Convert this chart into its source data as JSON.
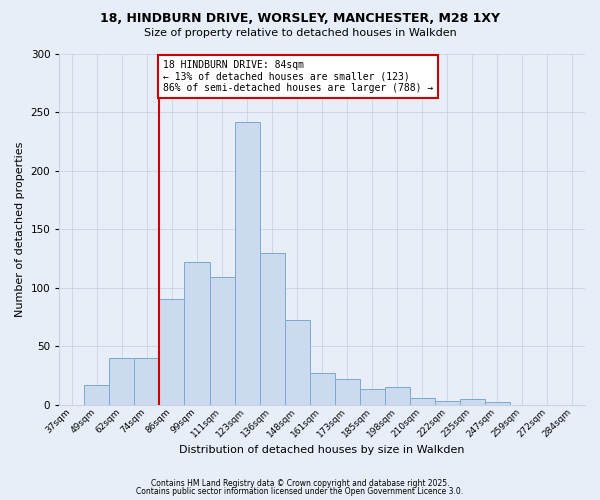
{
  "title1": "18, HINDBURN DRIVE, WORSLEY, MANCHESTER, M28 1XY",
  "title2": "Size of property relative to detached houses in Walkden",
  "xlabel": "Distribution of detached houses by size in Walkden",
  "ylabel": "Number of detached properties",
  "categories": [
    "37sqm",
    "49sqm",
    "62sqm",
    "74sqm",
    "86sqm",
    "99sqm",
    "111sqm",
    "123sqm",
    "136sqm",
    "148sqm",
    "161sqm",
    "173sqm",
    "185sqm",
    "198sqm",
    "210sqm",
    "222sqm",
    "235sqm",
    "247sqm",
    "259sqm",
    "272sqm",
    "284sqm"
  ],
  "values": [
    0,
    17,
    40,
    40,
    90,
    122,
    109,
    242,
    130,
    72,
    27,
    22,
    13,
    15,
    6,
    3,
    5,
    2,
    0,
    0,
    0
  ],
  "bar_color": "#ccdaf0",
  "bar_edge_color": "#7aaad0",
  "grid_color": "#c8d4e4",
  "vline_x_index": 4,
  "vline_color": "#cc0000",
  "annotation_text": "18 HINDBURN DRIVE: 84sqm\n← 13% of detached houses are smaller (123)\n86% of semi-detached houses are larger (788) →",
  "annotation_box_color": "#cc0000",
  "ylim": [
    0,
    300
  ],
  "yticks": [
    0,
    50,
    100,
    150,
    200,
    250,
    300
  ],
  "footer1": "Contains HM Land Registry data © Crown copyright and database right 2025.",
  "footer2": "Contains public sector information licensed under the Open Government Licence 3.0.",
  "bg_color": "#e8eef8",
  "plot_bg_color": "#e8eef8"
}
